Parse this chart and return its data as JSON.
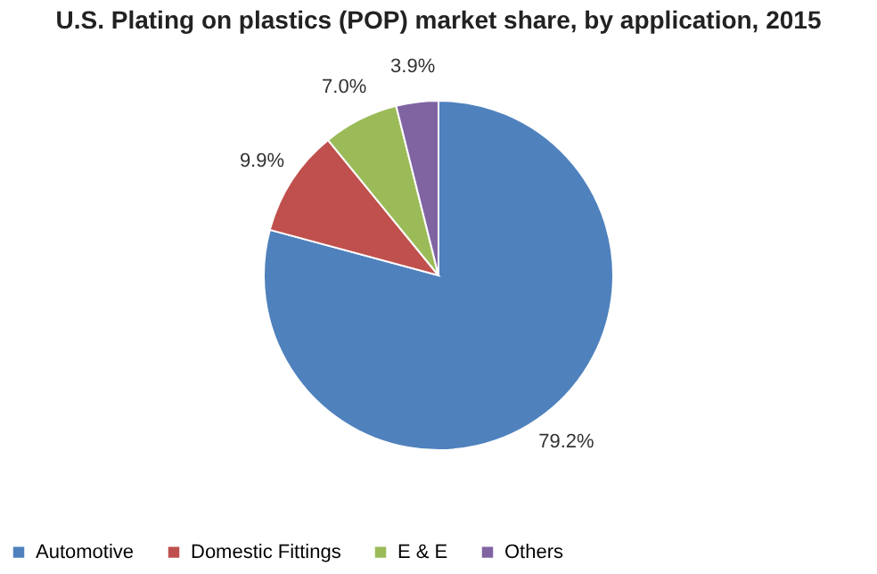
{
  "chart_data": {
    "type": "pie",
    "title": "U.S. Plating on plastics (POP) market share, by application, 2015",
    "categories": [
      "Automotive",
      "Domestic Fittings",
      "E & E",
      "Others"
    ],
    "values": [
      79.2,
      9.9,
      7.0,
      3.9
    ],
    "colors": [
      "#4f81bd",
      "#c0504d",
      "#9bbb59",
      "#8064a2"
    ],
    "value_labels": [
      "79.2%",
      "9.9%",
      "7.0%",
      "3.9%"
    ],
    "legend": "bottom"
  }
}
